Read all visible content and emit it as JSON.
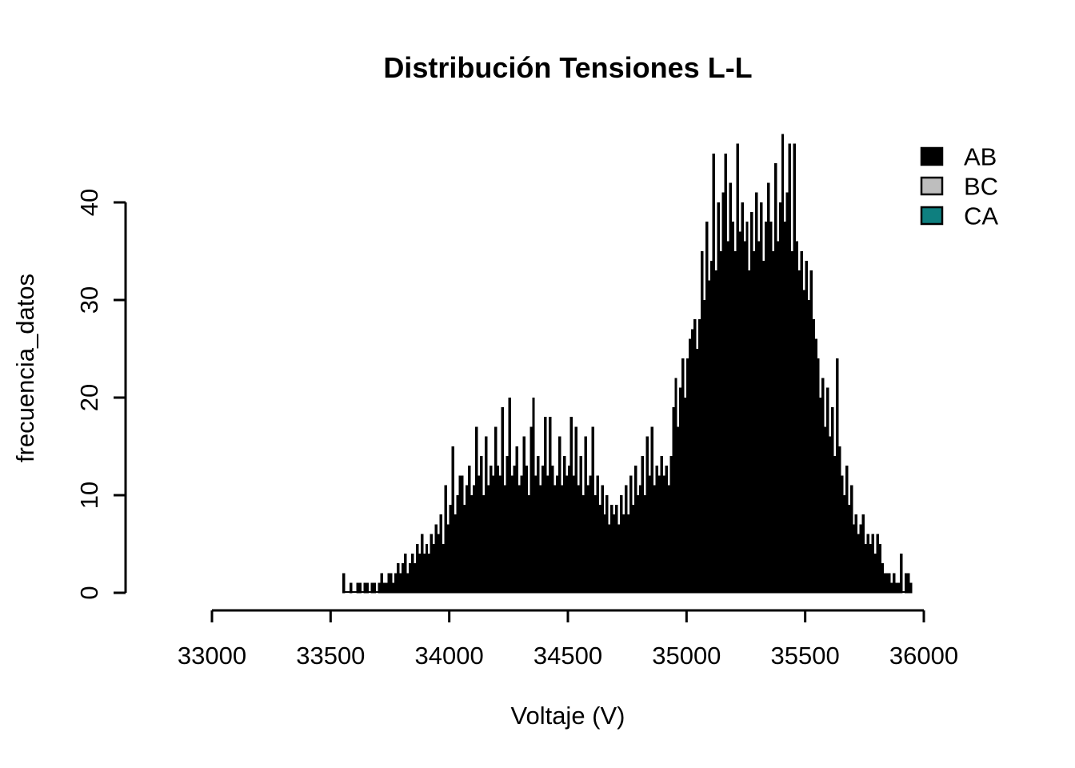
{
  "chart_data": {
    "type": "bar",
    "subtype": "histogram",
    "title": "Distribución Tensiones L-L",
    "xlabel": "Voltaje (V)",
    "ylabel": "frecuencia_datos",
    "x_ticks": [
      33000,
      33500,
      34000,
      34500,
      35000,
      35500,
      36000
    ],
    "y_ticks": [
      0,
      10,
      20,
      30,
      40
    ],
    "xlim": [
      33000,
      36000
    ],
    "ylim": [
      0,
      48
    ],
    "grid": false,
    "legend_position": "top-right",
    "legend": [
      {
        "label": "AB",
        "color": "#000000"
      },
      {
        "label": "BC",
        "color": "#BEBEBE"
      },
      {
        "label": "CA",
        "color": "#0E7F7F"
      }
    ],
    "visible_series": "AB",
    "bar_color": "#000000",
    "bar_border_color": "#000000",
    "histogram": {
      "bin_start": 33550,
      "bin_width": 10,
      "values": [
        2,
        0,
        0,
        1,
        0,
        0,
        1,
        1,
        0,
        1,
        1,
        0,
        1,
        1,
        0,
        1,
        2,
        1,
        1,
        2,
        2,
        1,
        2,
        3,
        2,
        3,
        4,
        2,
        3,
        4,
        3,
        5,
        4,
        6,
        4,
        5,
        4,
        6,
        5,
        7,
        6,
        8,
        5,
        11,
        7,
        9,
        15,
        8,
        10,
        12,
        12,
        9,
        11,
        13,
        10,
        11,
        17,
        12,
        14,
        10,
        16,
        11,
        13,
        12,
        17,
        13,
        12,
        19,
        11,
        14,
        20,
        12,
        13,
        15,
        11,
        12,
        16,
        13,
        10,
        17,
        20,
        12,
        14,
        11,
        13,
        18,
        12,
        18,
        13,
        11,
        12,
        16,
        11,
        14,
        12,
        13,
        18,
        12,
        17,
        11,
        14,
        10,
        16,
        11,
        12,
        17,
        10,
        12,
        9,
        11,
        8,
        10,
        7,
        9,
        8,
        9,
        7,
        10,
        8,
        11,
        8,
        12,
        9,
        13,
        10,
        11,
        14,
        10,
        16,
        12,
        17,
        11,
        13,
        12,
        14,
        12,
        13,
        11,
        14,
        19,
        22,
        17,
        21,
        24,
        20,
        24,
        26,
        27,
        28,
        25,
        28,
        35,
        30,
        38,
        32,
        34,
        45,
        33,
        40,
        35,
        41,
        45,
        36,
        42,
        38,
        35,
        46,
        37,
        40,
        36,
        38,
        33,
        39,
        35,
        41,
        36,
        40,
        34,
        38,
        42,
        38,
        35,
        44,
        36,
        40,
        47,
        38,
        41,
        46,
        35,
        46,
        36,
        33,
        35,
        31,
        34,
        30,
        33,
        28,
        26,
        24,
        20,
        22,
        17,
        21,
        16,
        19,
        14,
        24,
        15,
        12,
        10,
        13,
        9,
        11,
        7,
        8,
        6,
        7,
        8,
        5,
        6,
        5,
        6,
        4,
        6,
        5,
        3,
        2,
        2,
        2,
        1,
        2,
        1,
        1,
        4,
        0,
        2,
        2,
        1
      ]
    }
  }
}
